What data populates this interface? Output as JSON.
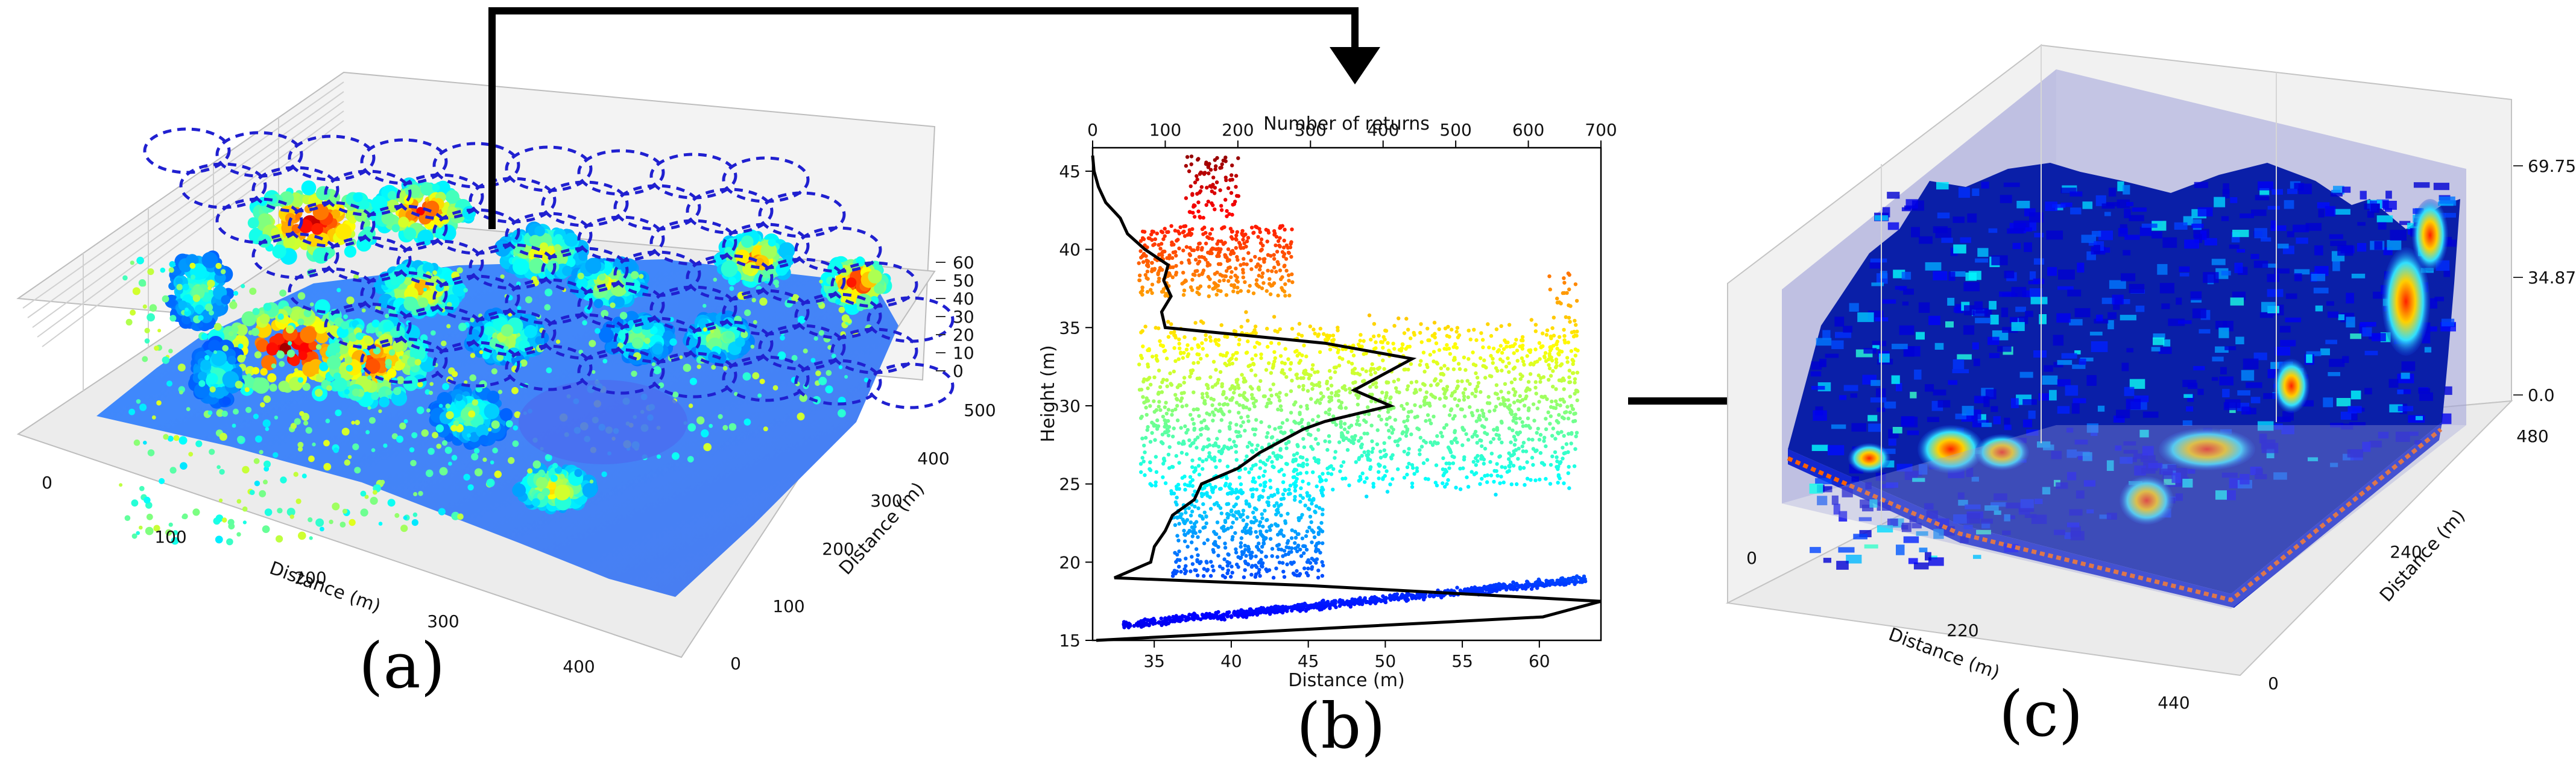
{
  "figure": {
    "panels": [
      "(a)",
      "(b)",
      "(c)"
    ]
  },
  "colors": {
    "jet": [
      "#00007f",
      "#0000ff",
      "#007fff",
      "#00ffff",
      "#7fff7f",
      "#ffff00",
      "#ff7f00",
      "#ff0000",
      "#7f0000"
    ],
    "circle": "#2020d0",
    "curve": "#000000",
    "box": "#9ea0d8"
  },
  "chart_data": [
    {
      "type": "scatter3d",
      "panel": "(a)",
      "title": "",
      "xlabel": "Distance (m)",
      "ylabel": "Distance (m)",
      "zlabel": "",
      "x_ticks": [
        "0",
        "100",
        "200",
        "300",
        "400"
      ],
      "y_ticks": [
        "0",
        "100",
        "200",
        "300",
        "400",
        "500"
      ],
      "z_ticks": [
        "0",
        "10",
        "20",
        "30",
        "40",
        "50",
        "60"
      ],
      "xlim": [
        0,
        450
      ],
      "ylim": [
        0,
        520
      ],
      "zlim": [
        0,
        60
      ],
      "note": "LiDAR point cloud coloured by height with dashed circular sampling plots"
    },
    {
      "type": "scatter",
      "panel": "(b)",
      "xlabel": "Distance (m)",
      "ylabel": "Height (m)",
      "top_xlabel": "Number of returns",
      "x_ticks": [
        35,
        40,
        45,
        50,
        55,
        60
      ],
      "y_ticks": [
        15,
        20,
        25,
        30,
        35,
        40,
        45
      ],
      "top_ticks": [
        0,
        100,
        200,
        300,
        400,
        500,
        600,
        700
      ],
      "xlim": [
        31,
        64
      ],
      "ylim": [
        15,
        46.5
      ],
      "top_lim": [
        0,
        700
      ],
      "profile": {
        "name": "Number of returns",
        "heights": [
          15,
          16.5,
          17.5,
          18.5,
          19,
          20,
          21,
          22,
          23,
          24,
          25,
          26,
          27,
          28,
          28.5,
          29,
          30,
          31,
          32,
          33,
          34,
          35,
          36,
          37,
          38,
          39,
          40,
          41,
          42,
          43,
          44,
          45,
          46
        ],
        "returns": [
          5,
          620,
          700,
          300,
          30,
          80,
          85,
          100,
          110,
          140,
          150,
          200,
          230,
          270,
          290,
          320,
          410,
          360,
          400,
          440,
          320,
          100,
          95,
          108,
          98,
          104,
          72,
          48,
          38,
          18,
          8,
          2,
          0
        ]
      }
    },
    {
      "type": "voxel3d",
      "panel": "(c)",
      "xlabel": "Distance (m)",
      "ylabel": "Distance (m)",
      "x_ticks": [
        "0",
        "220",
        "440"
      ],
      "y_ticks": [
        "0",
        "240",
        "480"
      ],
      "z_ticks": [
        "0.0",
        "34.875",
        "69.75"
      ],
      "xlim": [
        0,
        440
      ],
      "ylim": [
        0,
        480
      ],
      "zlim": [
        0,
        69.75
      ],
      "note": "Voxelised density of returns rendered in jet colormap inside a translucent bounding box"
    }
  ]
}
